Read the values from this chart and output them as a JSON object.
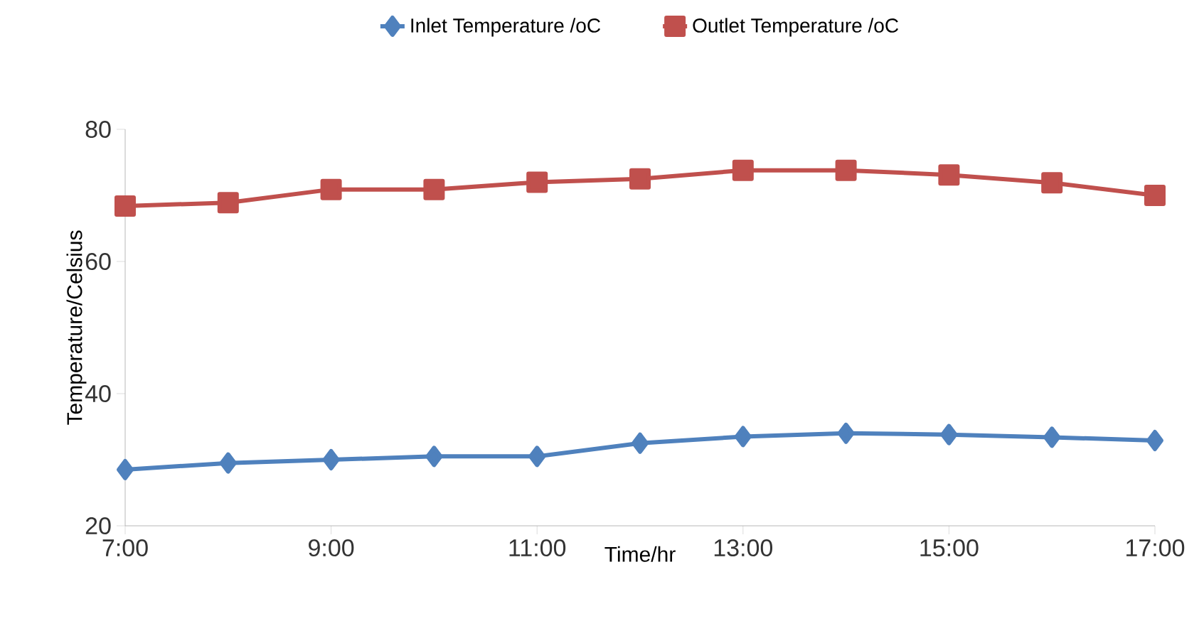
{
  "chart_data": {
    "type": "line",
    "xlabel": "Time/hr",
    "ylabel": "Temperature/Celsius",
    "x": [
      7,
      8,
      9,
      10,
      11,
      12,
      13,
      14,
      15,
      16,
      17
    ],
    "series": [
      {
        "name": "Inlet Temperature /oC",
        "color": "#4f81bd",
        "marker": "diamond",
        "values": [
          28.5,
          29.5,
          30.0,
          30.5,
          30.5,
          32.5,
          33.5,
          34.0,
          33.8,
          33.4,
          32.9
        ]
      },
      {
        "name": "Outlet Temperature /oC",
        "color": "#c0504d",
        "marker": "square",
        "values": [
          68.4,
          68.9,
          70.9,
          70.9,
          72.0,
          72.5,
          73.8,
          73.8,
          73.1,
          71.9,
          70.0
        ]
      }
    ],
    "xlim": [
      7,
      17
    ],
    "xticks": [
      {
        "value": 7,
        "label": "7:00"
      },
      {
        "value": 9,
        "label": "9:00"
      },
      {
        "value": 11,
        "label": "11:00"
      },
      {
        "value": 13,
        "label": "13:00"
      },
      {
        "value": 15,
        "label": "15:00"
      },
      {
        "value": 17,
        "label": "17:00"
      }
    ],
    "ylim": [
      20,
      80
    ],
    "yticks": [
      20,
      40,
      60,
      80
    ],
    "grid": false,
    "legend": "top",
    "line_style": "solid"
  }
}
